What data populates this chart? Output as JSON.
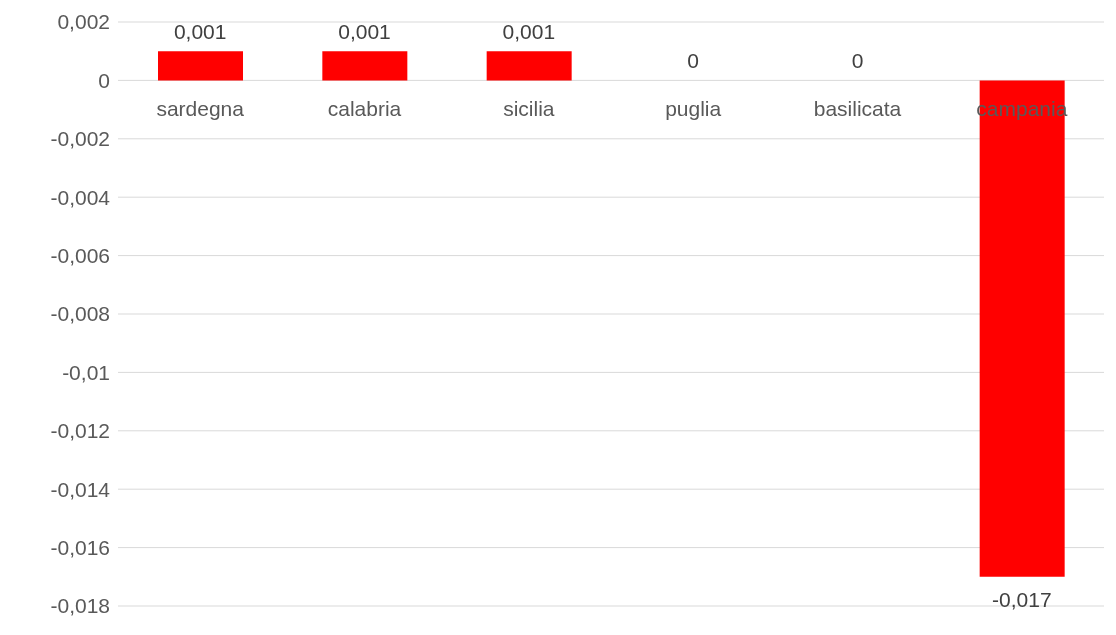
{
  "chart_data": {
    "type": "bar",
    "categories": [
      "sardegna",
      "calabria",
      "sicilia",
      "puglia",
      "basilicata",
      "campania"
    ],
    "values": [
      0.001,
      0.001,
      0.001,
      0,
      0,
      -0.017
    ],
    "value_labels": [
      "0,001",
      "0,001",
      "0,001",
      "0",
      "0",
      "-0,017"
    ],
    "color": "#ff0000",
    "ylim": [
      -0.018,
      0.002
    ],
    "yticks": [
      {
        "value": -0.018,
        "label": "-0,018"
      },
      {
        "value": -0.016,
        "label": "-0,016"
      },
      {
        "value": -0.014,
        "label": "-0,014"
      },
      {
        "value": -0.012,
        "label": "-0,012"
      },
      {
        "value": -0.01,
        "label": "-0,01"
      },
      {
        "value": -0.008,
        "label": "-0,008"
      },
      {
        "value": -0.006,
        "label": "-0,006"
      },
      {
        "value": -0.004,
        "label": "-0,004"
      },
      {
        "value": -0.002,
        "label": "-0,002"
      },
      {
        "value": 0,
        "label": "0"
      },
      {
        "value": 0.002,
        "label": "0,002"
      }
    ],
    "grid": "y"
  }
}
